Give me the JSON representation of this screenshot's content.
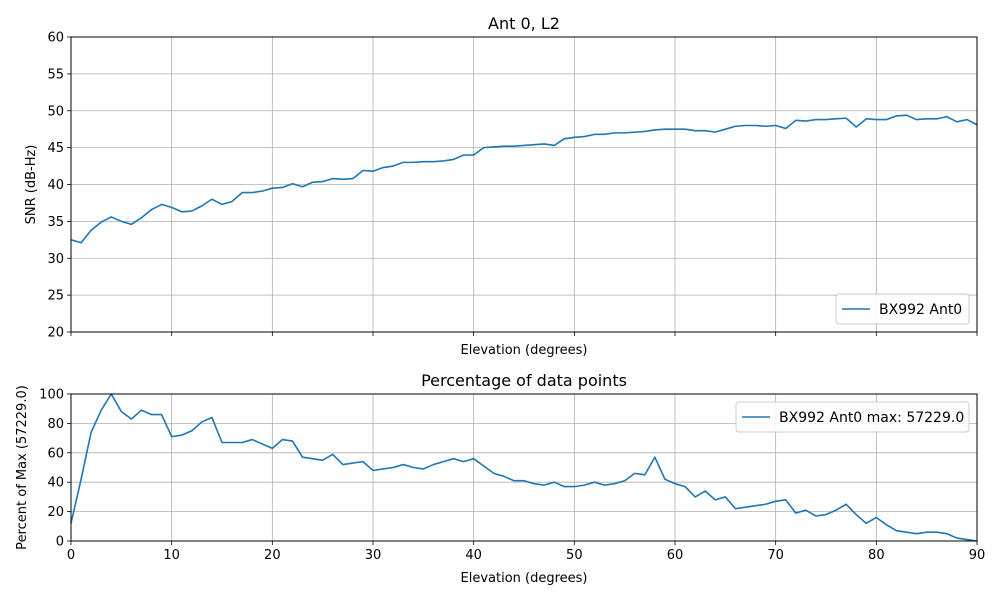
{
  "chart_data": [
    {
      "type": "line",
      "title": "Ant 0, L2",
      "xlabel": "Elevation (degrees)",
      "ylabel": "SNR (dB-Hz)",
      "xlim": [
        0,
        90
      ],
      "ylim": [
        20,
        60
      ],
      "xticks": [
        0,
        10,
        20,
        30,
        40,
        50,
        60,
        70,
        80,
        90
      ],
      "yticks": [
        20,
        25,
        30,
        35,
        40,
        45,
        50,
        55,
        60
      ],
      "show_x_tick_labels": false,
      "grid": true,
      "legend_position": "lower-right",
      "series": [
        {
          "name": "BX992 Ant0",
          "color": "#1f77b4",
          "x": [
            0,
            1,
            2,
            3,
            4,
            5,
            6,
            7,
            8,
            9,
            10,
            11,
            12,
            13,
            14,
            15,
            16,
            17,
            18,
            19,
            20,
            21,
            22,
            23,
            24,
            25,
            26,
            27,
            28,
            29,
            30,
            31,
            32,
            33,
            34,
            35,
            36,
            37,
            38,
            39,
            40,
            41,
            42,
            43,
            44,
            45,
            46,
            47,
            48,
            49,
            50,
            51,
            52,
            53,
            54,
            55,
            56,
            57,
            58,
            59,
            60,
            61,
            62,
            63,
            64,
            65,
            66,
            67,
            68,
            69,
            70,
            71,
            72,
            73,
            74,
            75,
            76,
            77,
            78,
            79,
            80,
            81,
            82,
            83,
            84,
            85,
            86,
            87,
            88,
            89,
            90
          ],
          "y": [
            32.5,
            32.1,
            33.8,
            34.9,
            35.6,
            35.0,
            34.6,
            35.5,
            36.6,
            37.3,
            36.9,
            36.3,
            36.4,
            37.1,
            38.0,
            37.3,
            37.7,
            38.9,
            38.9,
            39.1,
            39.5,
            39.6,
            40.1,
            39.7,
            40.3,
            40.4,
            40.8,
            40.7,
            40.8,
            41.9,
            41.8,
            42.3,
            42.5,
            43.0,
            43.0,
            43.1,
            43.1,
            43.2,
            43.4,
            44.0,
            44.0,
            45.0,
            45.1,
            45.2,
            45.2,
            45.3,
            45.4,
            45.5,
            45.3,
            46.2,
            46.4,
            46.5,
            46.8,
            46.8,
            47.0,
            47.0,
            47.1,
            47.2,
            47.4,
            47.5,
            47.5,
            47.5,
            47.3,
            47.3,
            47.1,
            47.5,
            47.9,
            48.0,
            48.0,
            47.9,
            48.0,
            47.6,
            48.7,
            48.6,
            48.8,
            48.8,
            48.9,
            49.0,
            47.8,
            48.9,
            48.8,
            48.8,
            49.3,
            49.4,
            48.8,
            48.9,
            48.9,
            49.2,
            48.5,
            48.8,
            48.1
          ]
        }
      ]
    },
    {
      "type": "line",
      "title": "Percentage of data points",
      "xlabel": "Elevation (degrees)",
      "ylabel": "Percent of Max (57229.0)",
      "xlim": [
        0,
        90
      ],
      "ylim": [
        0,
        100
      ],
      "xticks": [
        0,
        10,
        20,
        30,
        40,
        50,
        60,
        70,
        80,
        90
      ],
      "yticks": [
        0,
        20,
        40,
        60,
        80,
        100
      ],
      "show_x_tick_labels": true,
      "grid": true,
      "legend_position": "upper-right",
      "series": [
        {
          "name": "BX992 Ant0 max: 57229.0",
          "color": "#1f77b4",
          "x": [
            0,
            1,
            2,
            3,
            4,
            5,
            6,
            7,
            8,
            9,
            10,
            11,
            12,
            13,
            14,
            15,
            16,
            17,
            18,
            19,
            20,
            21,
            22,
            23,
            24,
            25,
            26,
            27,
            28,
            29,
            30,
            31,
            32,
            33,
            34,
            35,
            36,
            37,
            38,
            39,
            40,
            41,
            42,
            43,
            44,
            45,
            46,
            47,
            48,
            49,
            50,
            51,
            52,
            53,
            54,
            55,
            56,
            57,
            58,
            59,
            60,
            61,
            62,
            63,
            64,
            65,
            66,
            67,
            68,
            69,
            70,
            71,
            72,
            73,
            74,
            75,
            76,
            77,
            78,
            79,
            80,
            81,
            82,
            83,
            84,
            85,
            86,
            87,
            88,
            89,
            90
          ],
          "y": [
            12,
            42,
            74,
            89,
            100,
            88,
            83,
            89,
            86,
            86,
            71,
            72,
            75,
            81,
            84,
            67,
            67,
            67,
            69,
            66,
            63,
            69,
            68,
            57,
            56,
            55,
            59,
            52,
            53,
            54,
            48,
            49,
            50,
            52,
            50,
            49,
            52,
            54,
            56,
            54,
            56,
            51,
            46,
            44,
            41,
            41,
            39,
            38,
            40,
            37,
            37,
            38,
            40,
            38,
            39,
            41,
            46,
            45,
            57,
            42,
            39,
            37,
            30,
            34,
            28,
            30,
            22,
            23,
            24,
            25,
            27,
            28,
            19,
            21,
            17,
            18,
            21,
            25,
            18,
            12,
            16,
            11,
            7,
            6,
            5,
            6,
            6,
            5,
            2,
            1,
            0
          ]
        }
      ]
    }
  ]
}
